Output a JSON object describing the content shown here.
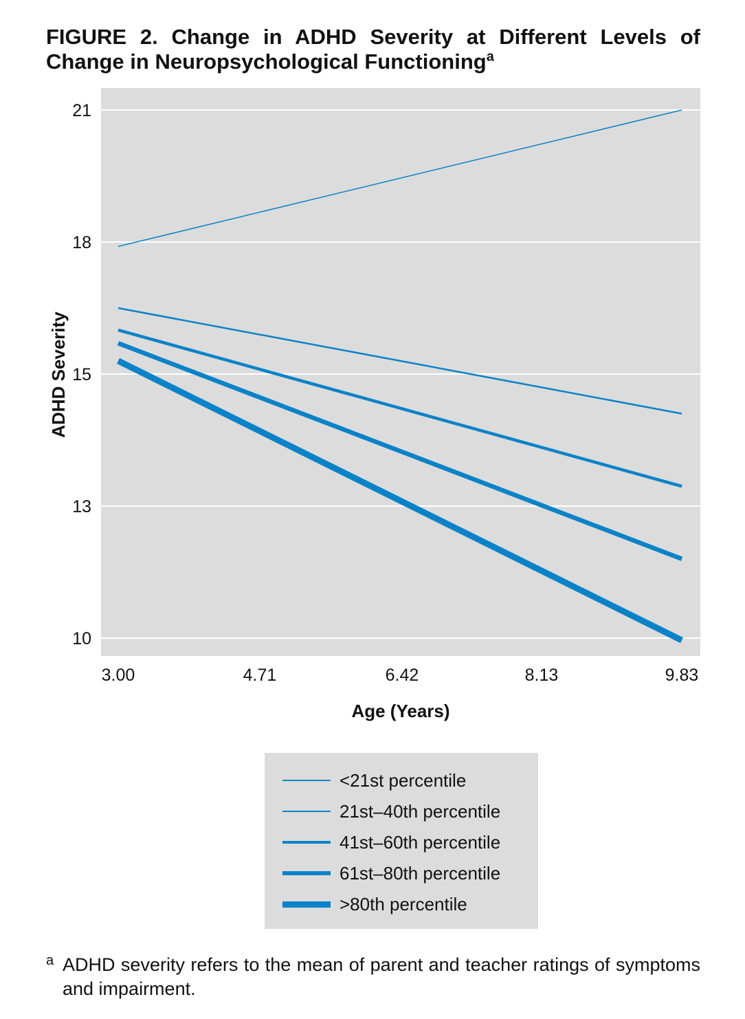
{
  "figure": {
    "title": "FIGURE 2. Change in ADHD Severity at Different Levels of Change in Neuropsychological Functioning",
    "title_superscript": "a"
  },
  "chart_data": {
    "type": "line",
    "xlabel": "Age (Years)",
    "ylabel": "ADHD Severity",
    "x_ticks": [
      "3.00",
      "4.71",
      "6.42",
      "8.13",
      "9.83"
    ],
    "y_ticks": [
      "21",
      "18",
      "15",
      "13",
      "10"
    ],
    "xlim": [
      3.0,
      9.83
    ],
    "ylim": [
      9.6,
      21.5
    ],
    "grid": true,
    "legend_position": "below",
    "series": [
      {
        "name": "<21st percentile",
        "x": [
          3.0,
          9.83
        ],
        "y": [
          17.9,
          21.0
        ],
        "stroke": 1.5
      },
      {
        "name": "21st–40th percentile",
        "x": [
          3.0,
          9.83
        ],
        "y": [
          16.5,
          14.4
        ],
        "stroke": 2.5
      },
      {
        "name": "41st–60th percentile",
        "x": [
          3.0,
          9.83
        ],
        "y": [
          16.0,
          13.3
        ],
        "stroke": 4.5
      },
      {
        "name": "61st–80th percentile",
        "x": [
          3.0,
          9.83
        ],
        "y": [
          15.7,
          11.8
        ],
        "stroke": 6.5
      },
      {
        "name": ">80th percentile",
        "x": [
          3.0,
          9.83
        ],
        "y": [
          15.3,
          9.95
        ],
        "stroke": 9
      }
    ],
    "colors": {
      "line": "#0a82c8",
      "plot_bg": "#dcdcdc",
      "grid": "#ffffff"
    }
  },
  "footnote": {
    "mark": "a",
    "text": "ADHD severity refers to the mean of parent and teacher ratings of symptoms and impairment."
  }
}
